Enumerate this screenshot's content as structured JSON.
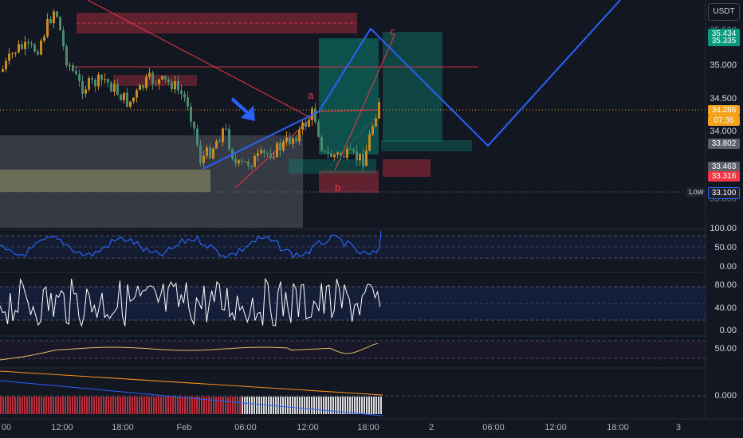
{
  "currency": "USDT",
  "price_axis": {
    "main": [
      "35.000",
      "34.500",
      "34.000"
    ],
    "main_partial": [
      "35.500",
      "33.000"
    ],
    "ind1": [
      "100.00",
      "50.00",
      "0.00"
    ],
    "ind2": [
      "80.00",
      "40.00",
      "0.00"
    ],
    "ind3": [
      "50.00"
    ],
    "ind4": [
      "0.000"
    ]
  },
  "price_tags": [
    {
      "value": "35.434",
      "color": "#089981"
    },
    {
      "value": "35.335",
      "color": "#089981"
    },
    {
      "value": "34.286",
      "color": "#f7a21b"
    },
    {
      "value": "07:36",
      "color": "#f7a21b"
    },
    {
      "value": "33.802",
      "color": "#5d606b"
    },
    {
      "value": "33.463",
      "color": "#5d606b"
    },
    {
      "value": "33.316",
      "color": "#f23645"
    }
  ],
  "low_tag": {
    "label": "Low",
    "value": "33.100"
  },
  "wave_labels": {
    "a": "a",
    "b": "b",
    "c": "c"
  },
  "time_axis": [
    "00",
    "12:00",
    "18:00",
    "Feb",
    "06:00",
    "12:00",
    "18:00",
    "2",
    "06:00",
    "12:00",
    "18:00",
    "3"
  ],
  "colors": {
    "background": "#131722",
    "up": "#c98a1e",
    "down": "#4b8a6f",
    "projection": "#2962ff",
    "resistance": "#f23645",
    "rsi": "#2962ff",
    "stoch": "#ffffff",
    "ma": "#e0c15c"
  }
}
